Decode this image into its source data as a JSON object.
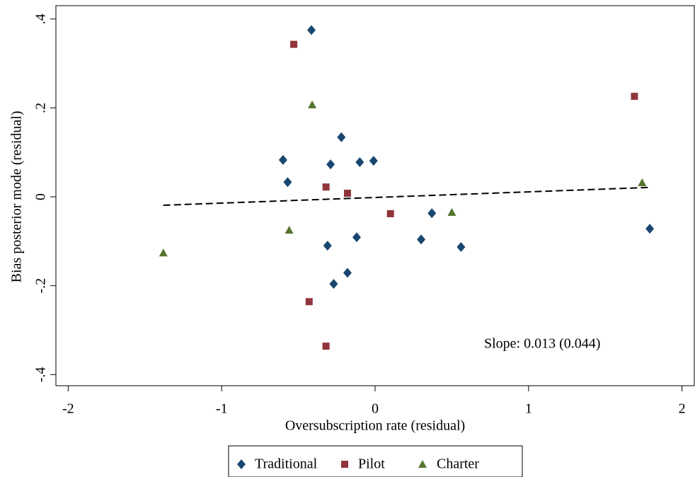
{
  "chart_data": {
    "type": "scatter",
    "x_label": "Oversubscription rate (residual)",
    "y_label": "Bias posterior mode (residual)",
    "annotation": "Slope: 0.013 (0.044)",
    "xlim": [
      -2.08,
      2.08
    ],
    "ylim": [
      -0.425,
      0.43
    ],
    "xticks": [
      -2,
      -1,
      0,
      1,
      2
    ],
    "yticks": [
      {
        "value": 0.4,
        "label": ".4"
      },
      {
        "value": 0.2,
        "label": ".2"
      },
      {
        "value": 0,
        "label": "0"
      },
      {
        "value": -0.2,
        "label": "-.2"
      },
      {
        "value": -0.4,
        "label": "-.4"
      }
    ],
    "legend": "bottom",
    "series": [
      {
        "name": "Traditional",
        "color": "#1a476f",
        "marker": "diamond",
        "x": [
          -0.415,
          -0.22,
          -0.6,
          -0.57,
          -0.29,
          -0.1,
          -0.01,
          0.37,
          -0.31,
          -0.12,
          0.3,
          0.56,
          -0.18,
          -0.27,
          1.79
        ],
        "values": [
          0.375,
          0.134,
          0.083,
          0.033,
          0.073,
          0.078,
          0.081,
          -0.037,
          -0.11,
          -0.091,
          -0.096,
          -0.113,
          -0.171,
          -0.196,
          -0.072
        ]
      },
      {
        "name": "Pilot",
        "color": "#90353b",
        "marker": "square",
        "x": [
          -0.53,
          1.69,
          -0.32,
          -0.18,
          0.1,
          -0.43,
          -0.32
        ],
        "values": [
          0.343,
          0.226,
          0.022,
          0.008,
          -0.038,
          -0.236,
          -0.336
        ]
      },
      {
        "name": "Charter",
        "color": "#55752f",
        "marker": "triangle",
        "x": [
          -0.41,
          1.74,
          0.5,
          -0.56,
          -1.38
        ],
        "values": [
          0.207,
          0.032,
          -0.035,
          -0.075,
          -0.126
        ]
      }
    ],
    "fit_line": {
      "color": "#000000",
      "x": [
        -1.38,
        1.78
      ],
      "values": [
        -0.019,
        0.021
      ]
    }
  }
}
